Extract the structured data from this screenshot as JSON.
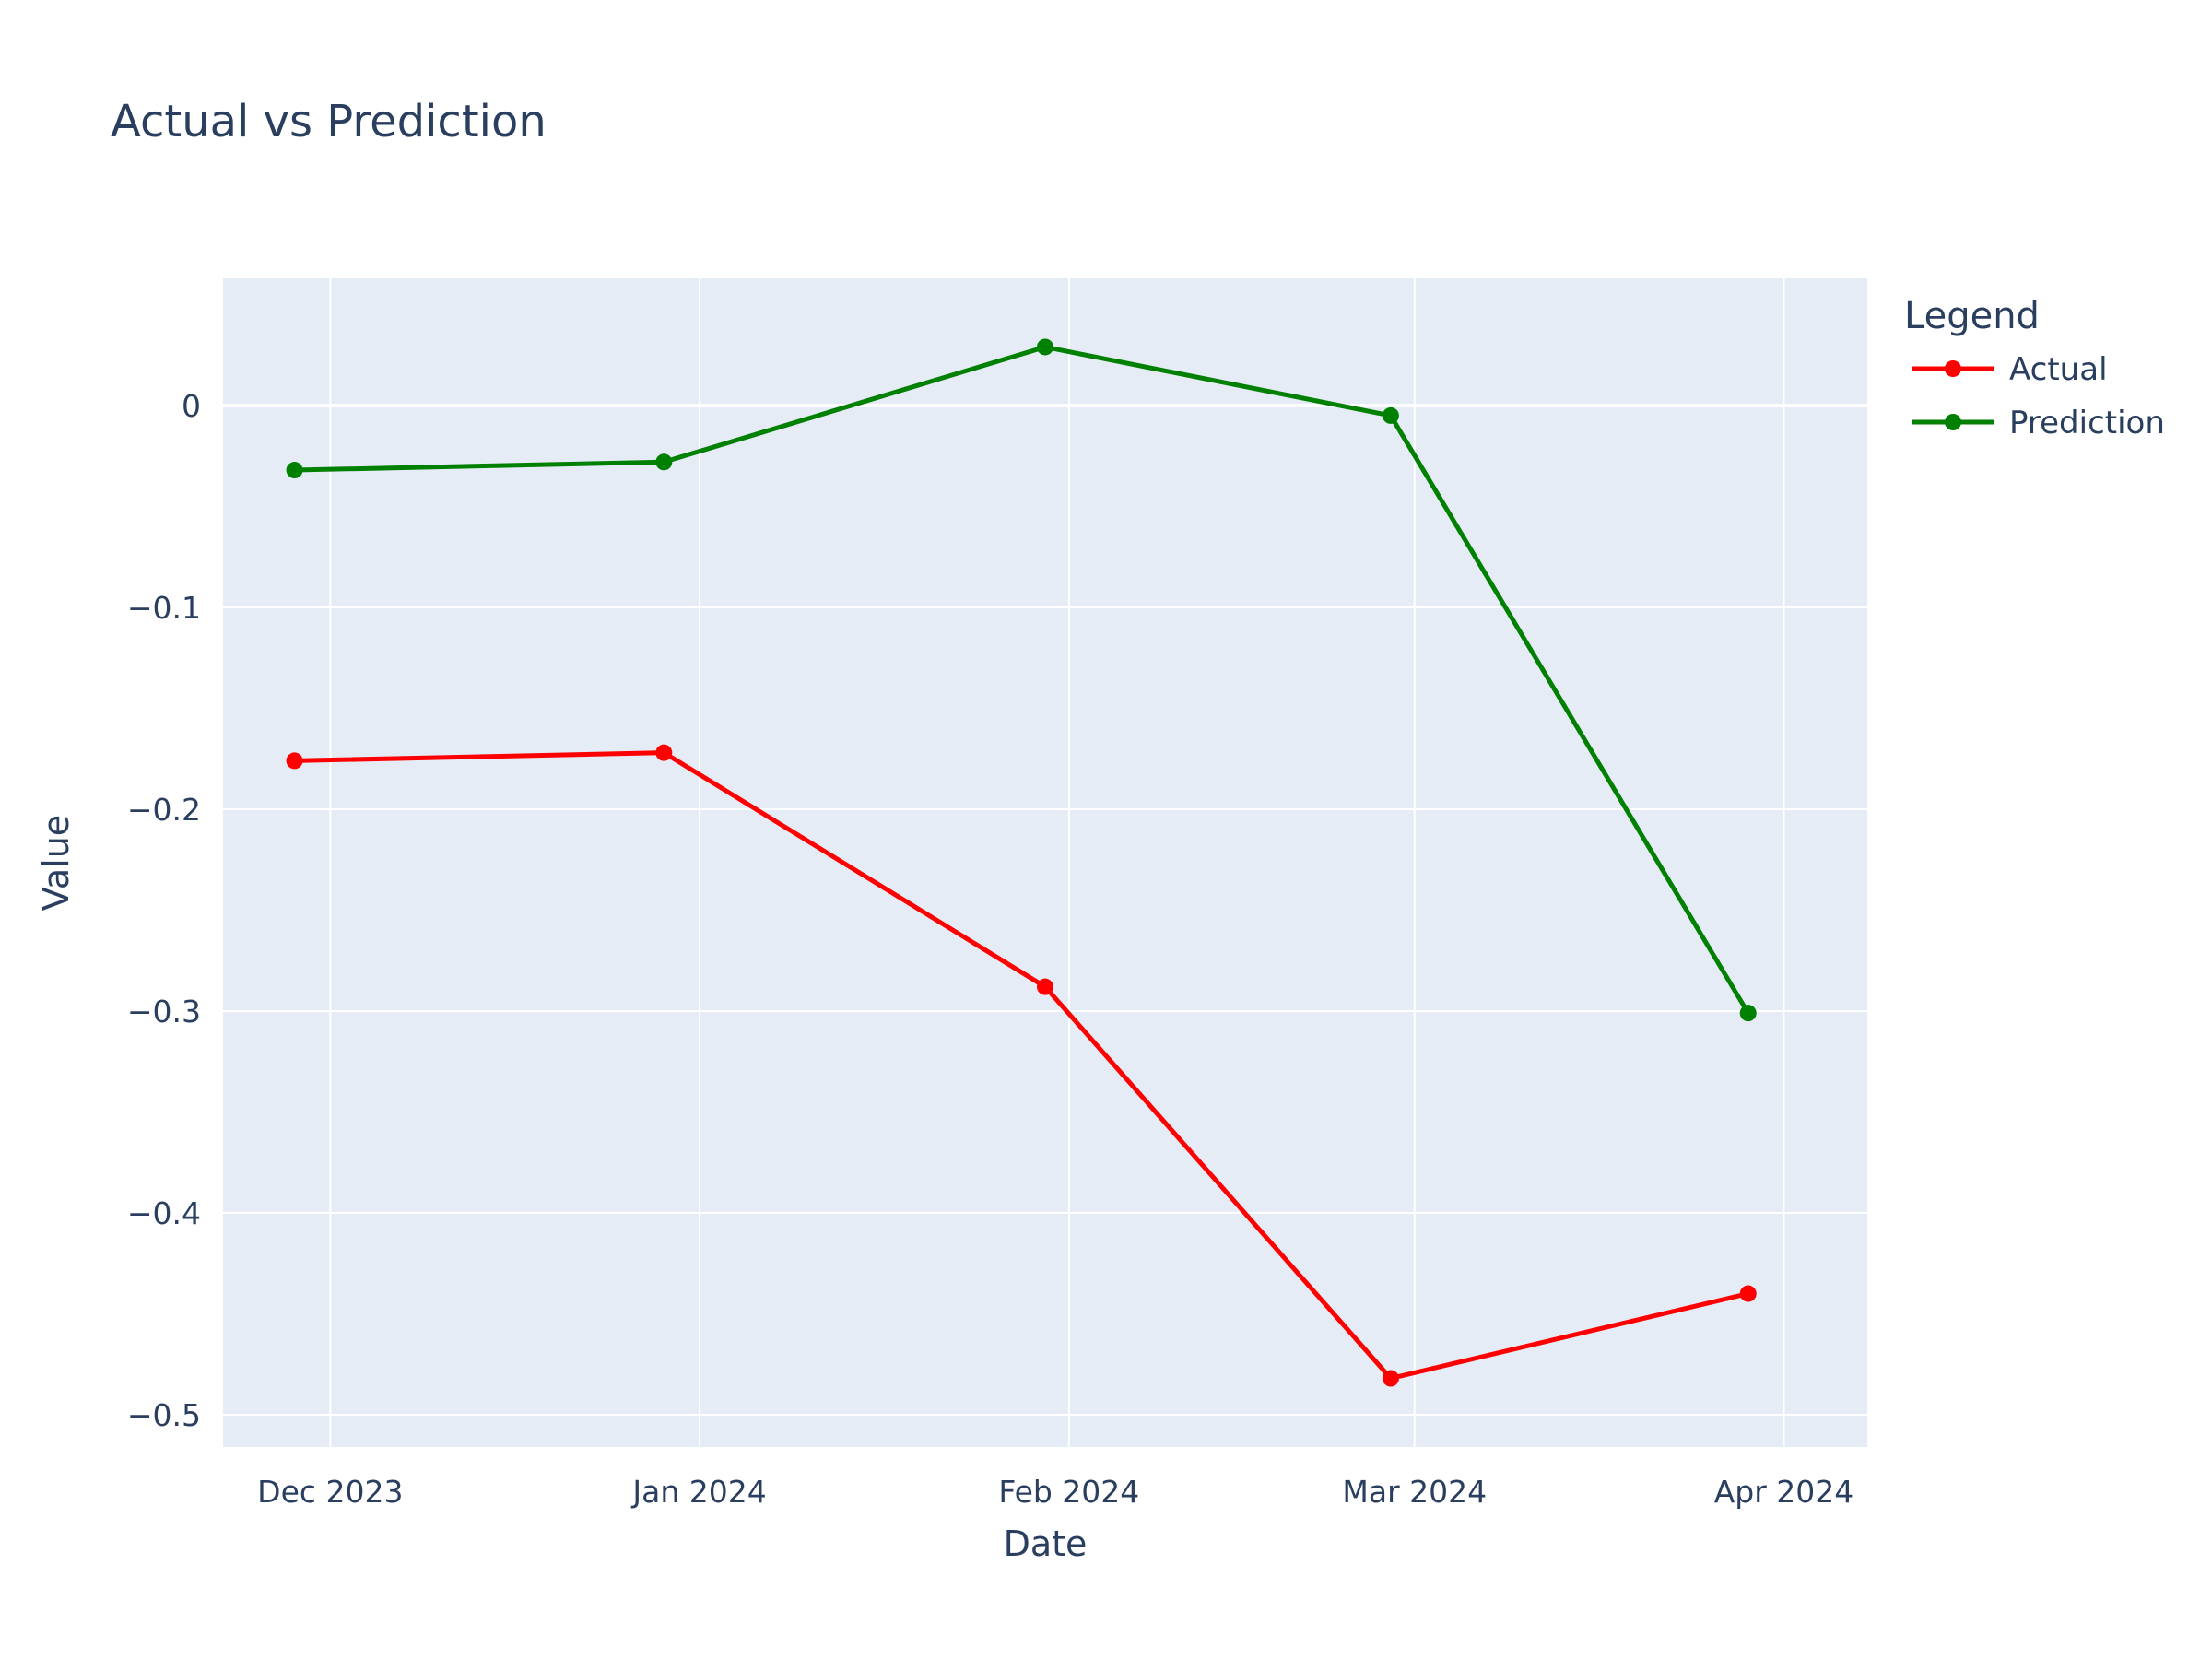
{
  "chart_data": {
    "type": "line",
    "title": "Actual vs Prediction",
    "xlabel": "Date",
    "ylabel": "Value",
    "x": [
      "2023-11-28",
      "2023-12-29",
      "2024-01-30",
      "2024-02-28",
      "2024-03-29"
    ],
    "x_ticks": [
      {
        "date": "2023-12-01",
        "label": "Dec 2023"
      },
      {
        "date": "2024-01-01",
        "label": "Jan 2024"
      },
      {
        "date": "2024-02-01",
        "label": "Feb 2024"
      },
      {
        "date": "2024-03-01",
        "label": "Mar 2024"
      },
      {
        "date": "2024-04-01",
        "label": "Apr 2024"
      }
    ],
    "xlim": [
      "2023-11-22",
      "2024-04-08"
    ],
    "ylim": [
      -0.516,
      0.063
    ],
    "y_ticks": [
      {
        "value": 0,
        "label": "0"
      },
      {
        "value": -0.1,
        "label": "−0.1"
      },
      {
        "value": -0.2,
        "label": "−0.2"
      },
      {
        "value": -0.3,
        "label": "−0.3"
      },
      {
        "value": -0.4,
        "label": "−0.4"
      },
      {
        "value": -0.5,
        "label": "−0.5"
      }
    ],
    "series": [
      {
        "name": "Actual",
        "color": "#ff0000",
        "values": [
          -0.176,
          -0.172,
          -0.288,
          -0.482,
          -0.44
        ]
      },
      {
        "name": "Prediction",
        "color": "#008000",
        "values": [
          -0.032,
          -0.028,
          0.029,
          -0.005,
          -0.301
        ]
      }
    ],
    "legend": {
      "title": "Legend",
      "placement": "right"
    },
    "grid": true,
    "plot_background": "#e5ecf6"
  }
}
